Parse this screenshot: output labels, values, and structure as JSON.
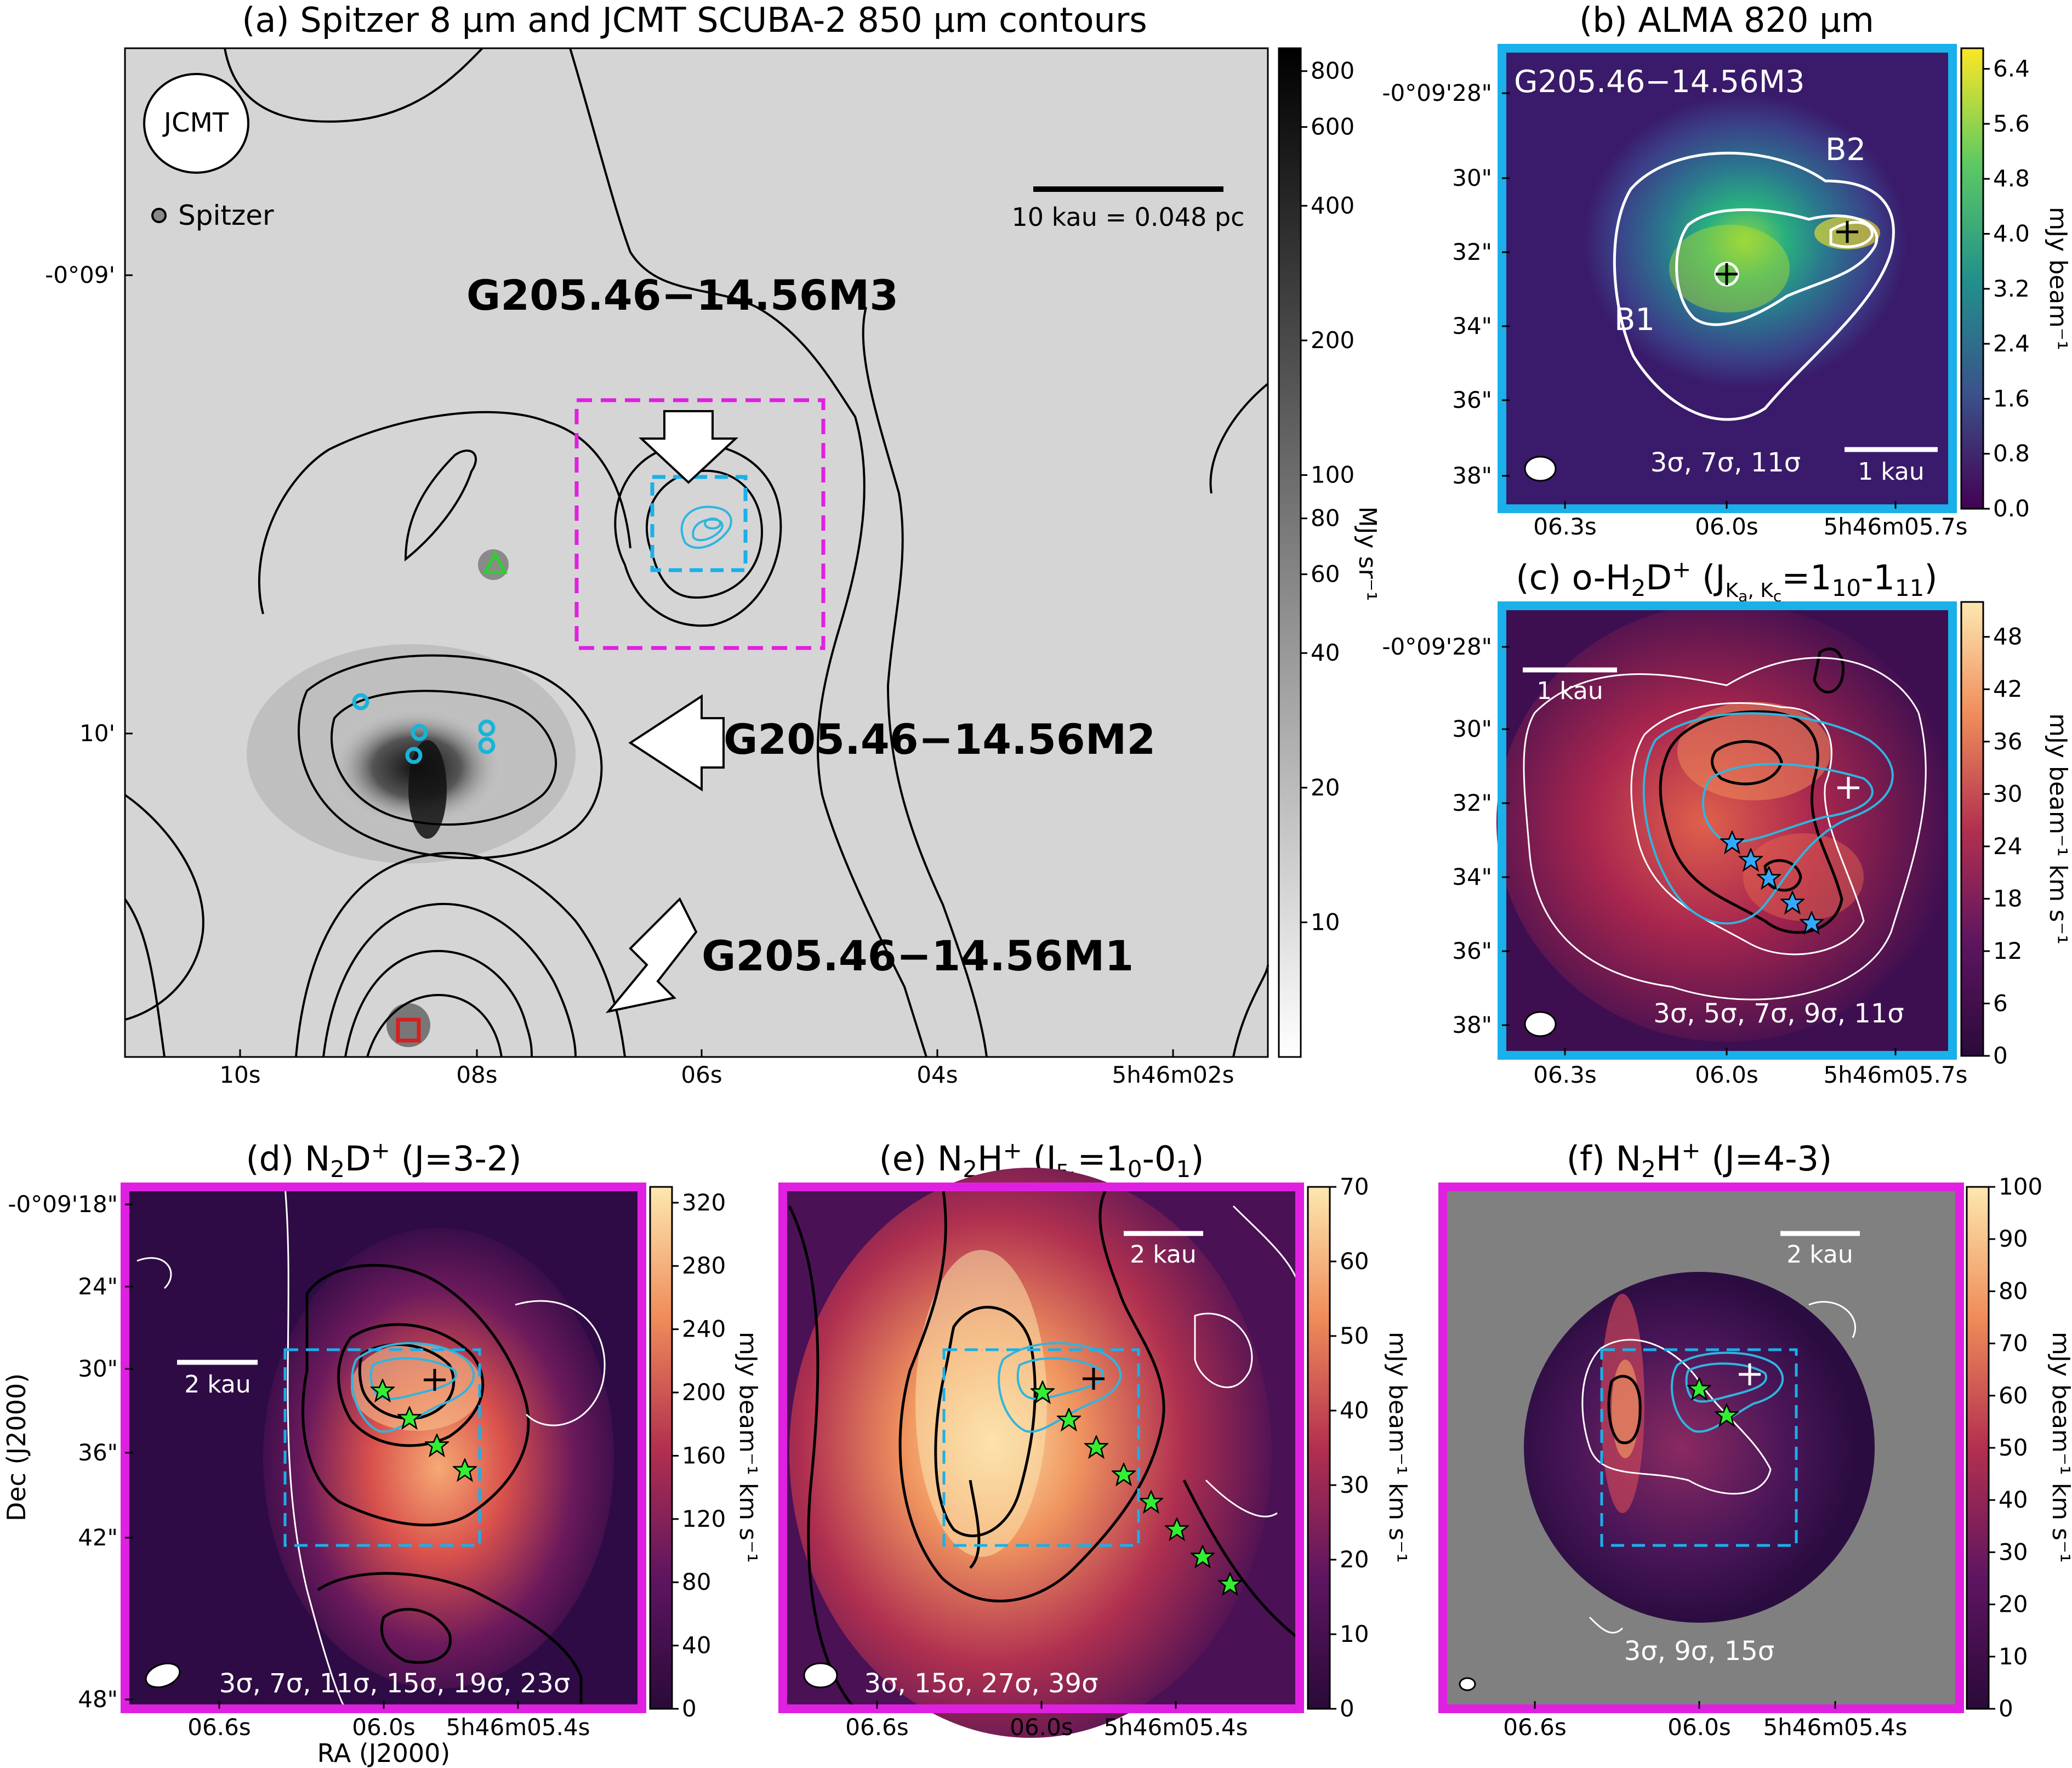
{
  "chart_data": [
    {
      "panel": "a",
      "type": "heatmap",
      "title": "(a) Spitzer 8 µm and JCMT SCUBA-2 850 µm contours",
      "xticks": [
        "10s",
        "08s",
        "06s",
        "04s",
        "5h46m02s"
      ],
      "yticks": [
        "-0°09'",
        "10'"
      ],
      "colorbar": {
        "ticks": [
          "800",
          "600",
          "400",
          "200",
          "100",
          "80",
          "60",
          "40",
          "20",
          "10"
        ],
        "unit": "MJy sr⁻¹",
        "scale": "log",
        "range": [
          5,
          900
        ]
      },
      "beam_label": "JCMT",
      "legend": "Spitzer",
      "scalebar": "10 kau = 0.048 pc",
      "annotations": [
        "G205.46−14.56M3",
        "G205.46−14.56M2",
        "G205.46−14.56M1"
      ]
    },
    {
      "panel": "b",
      "type": "heatmap",
      "title": "(b) ALMA 820 µm",
      "xticks": [
        "06.3s",
        "06.0s",
        "5h46m05.7s"
      ],
      "yticks": [
        "-0°09'28\"",
        "30\"",
        "32\"",
        "34\"",
        "36\"",
        "38\""
      ],
      "colorbar": {
        "ticks": [
          "6.4",
          "5.6",
          "4.8",
          "4.0",
          "3.2",
          "2.4",
          "1.6",
          "0.8",
          "0.0"
        ],
        "unit": "mJy beam⁻¹",
        "range": [
          0,
          6.7
        ]
      },
      "source_label": "G205.46−14.56M3",
      "labels": [
        "B1",
        "B2"
      ],
      "contours": "3σ, 7σ, 11σ",
      "scalebar": "1 kau"
    },
    {
      "panel": "c",
      "type": "heatmap",
      "title": "(c) o-H₂D⁺ (J_Ka,Kc=1₁₀-1₁₁)",
      "xticks": [
        "06.3s",
        "06.0s",
        "5h46m05.7s"
      ],
      "yticks": [
        "-0°09'28\"",
        "30\"",
        "32\"",
        "34\"",
        "36\"",
        "38\""
      ],
      "colorbar": {
        "ticks": [
          "48",
          "42",
          "36",
          "30",
          "24",
          "18",
          "12",
          "6",
          "0"
        ],
        "unit": "mJy beam⁻¹ km s⁻¹",
        "range": [
          0,
          52
        ]
      },
      "contours": "3σ, 5σ, 7σ, 9σ, 11σ",
      "scalebar": "1 kau"
    },
    {
      "panel": "d",
      "type": "heatmap",
      "title": "(d) N₂D⁺ (J=3-2)",
      "xticks": [
        "06.6s",
        "06.0s",
        "5h46m05.4s"
      ],
      "yticks": [
        "-0°09'18\"",
        "24\"",
        "30\"",
        "36\"",
        "42\"",
        "48\""
      ],
      "xlabel": "RA (J2000)",
      "ylabel": "Dec (J2000)",
      "colorbar": {
        "ticks": [
          "320",
          "280",
          "240",
          "200",
          "160",
          "120",
          "80",
          "40",
          "0"
        ],
        "unit": "mJy beam⁻¹ km s⁻¹",
        "range": [
          0,
          330
        ]
      },
      "contours": "3σ, 7σ, 11σ, 15σ, 19σ, 23σ",
      "scalebar": "2 kau"
    },
    {
      "panel": "e",
      "type": "heatmap",
      "title": "(e) N₂H⁺ (J_F1=1₀-0₁)",
      "xticks": [
        "06.6s",
        "06.0s",
        "5h46m05.4s"
      ],
      "colorbar": {
        "ticks": [
          "70",
          "60",
          "50",
          "40",
          "30",
          "20",
          "10",
          "0"
        ],
        "unit": "mJy beam⁻¹ km s⁻¹",
        "range": [
          0,
          70
        ]
      },
      "contours": "3σ, 15σ, 27σ, 39σ",
      "scalebar": "2 kau"
    },
    {
      "panel": "f",
      "type": "heatmap",
      "title": "(f) N₂H⁺ (J=4-3)",
      "xticks": [
        "06.6s",
        "06.0s",
        "5h46m05.4s"
      ],
      "colorbar": {
        "ticks": [
          "100",
          "90",
          "80",
          "70",
          "60",
          "50",
          "40",
          "30",
          "20",
          "10",
          "0"
        ],
        "unit": "mJy beam⁻¹ km s⁻¹",
        "range": [
          0,
          100
        ]
      },
      "contours": "3σ, 9σ, 15σ",
      "scalebar": "2 kau"
    }
  ],
  "colors": {
    "cyan_frame": "#1ab0ea",
    "magenta_frame": "#e020e0",
    "star_green": "#33ee33",
    "star_blue": "#33aaff"
  }
}
